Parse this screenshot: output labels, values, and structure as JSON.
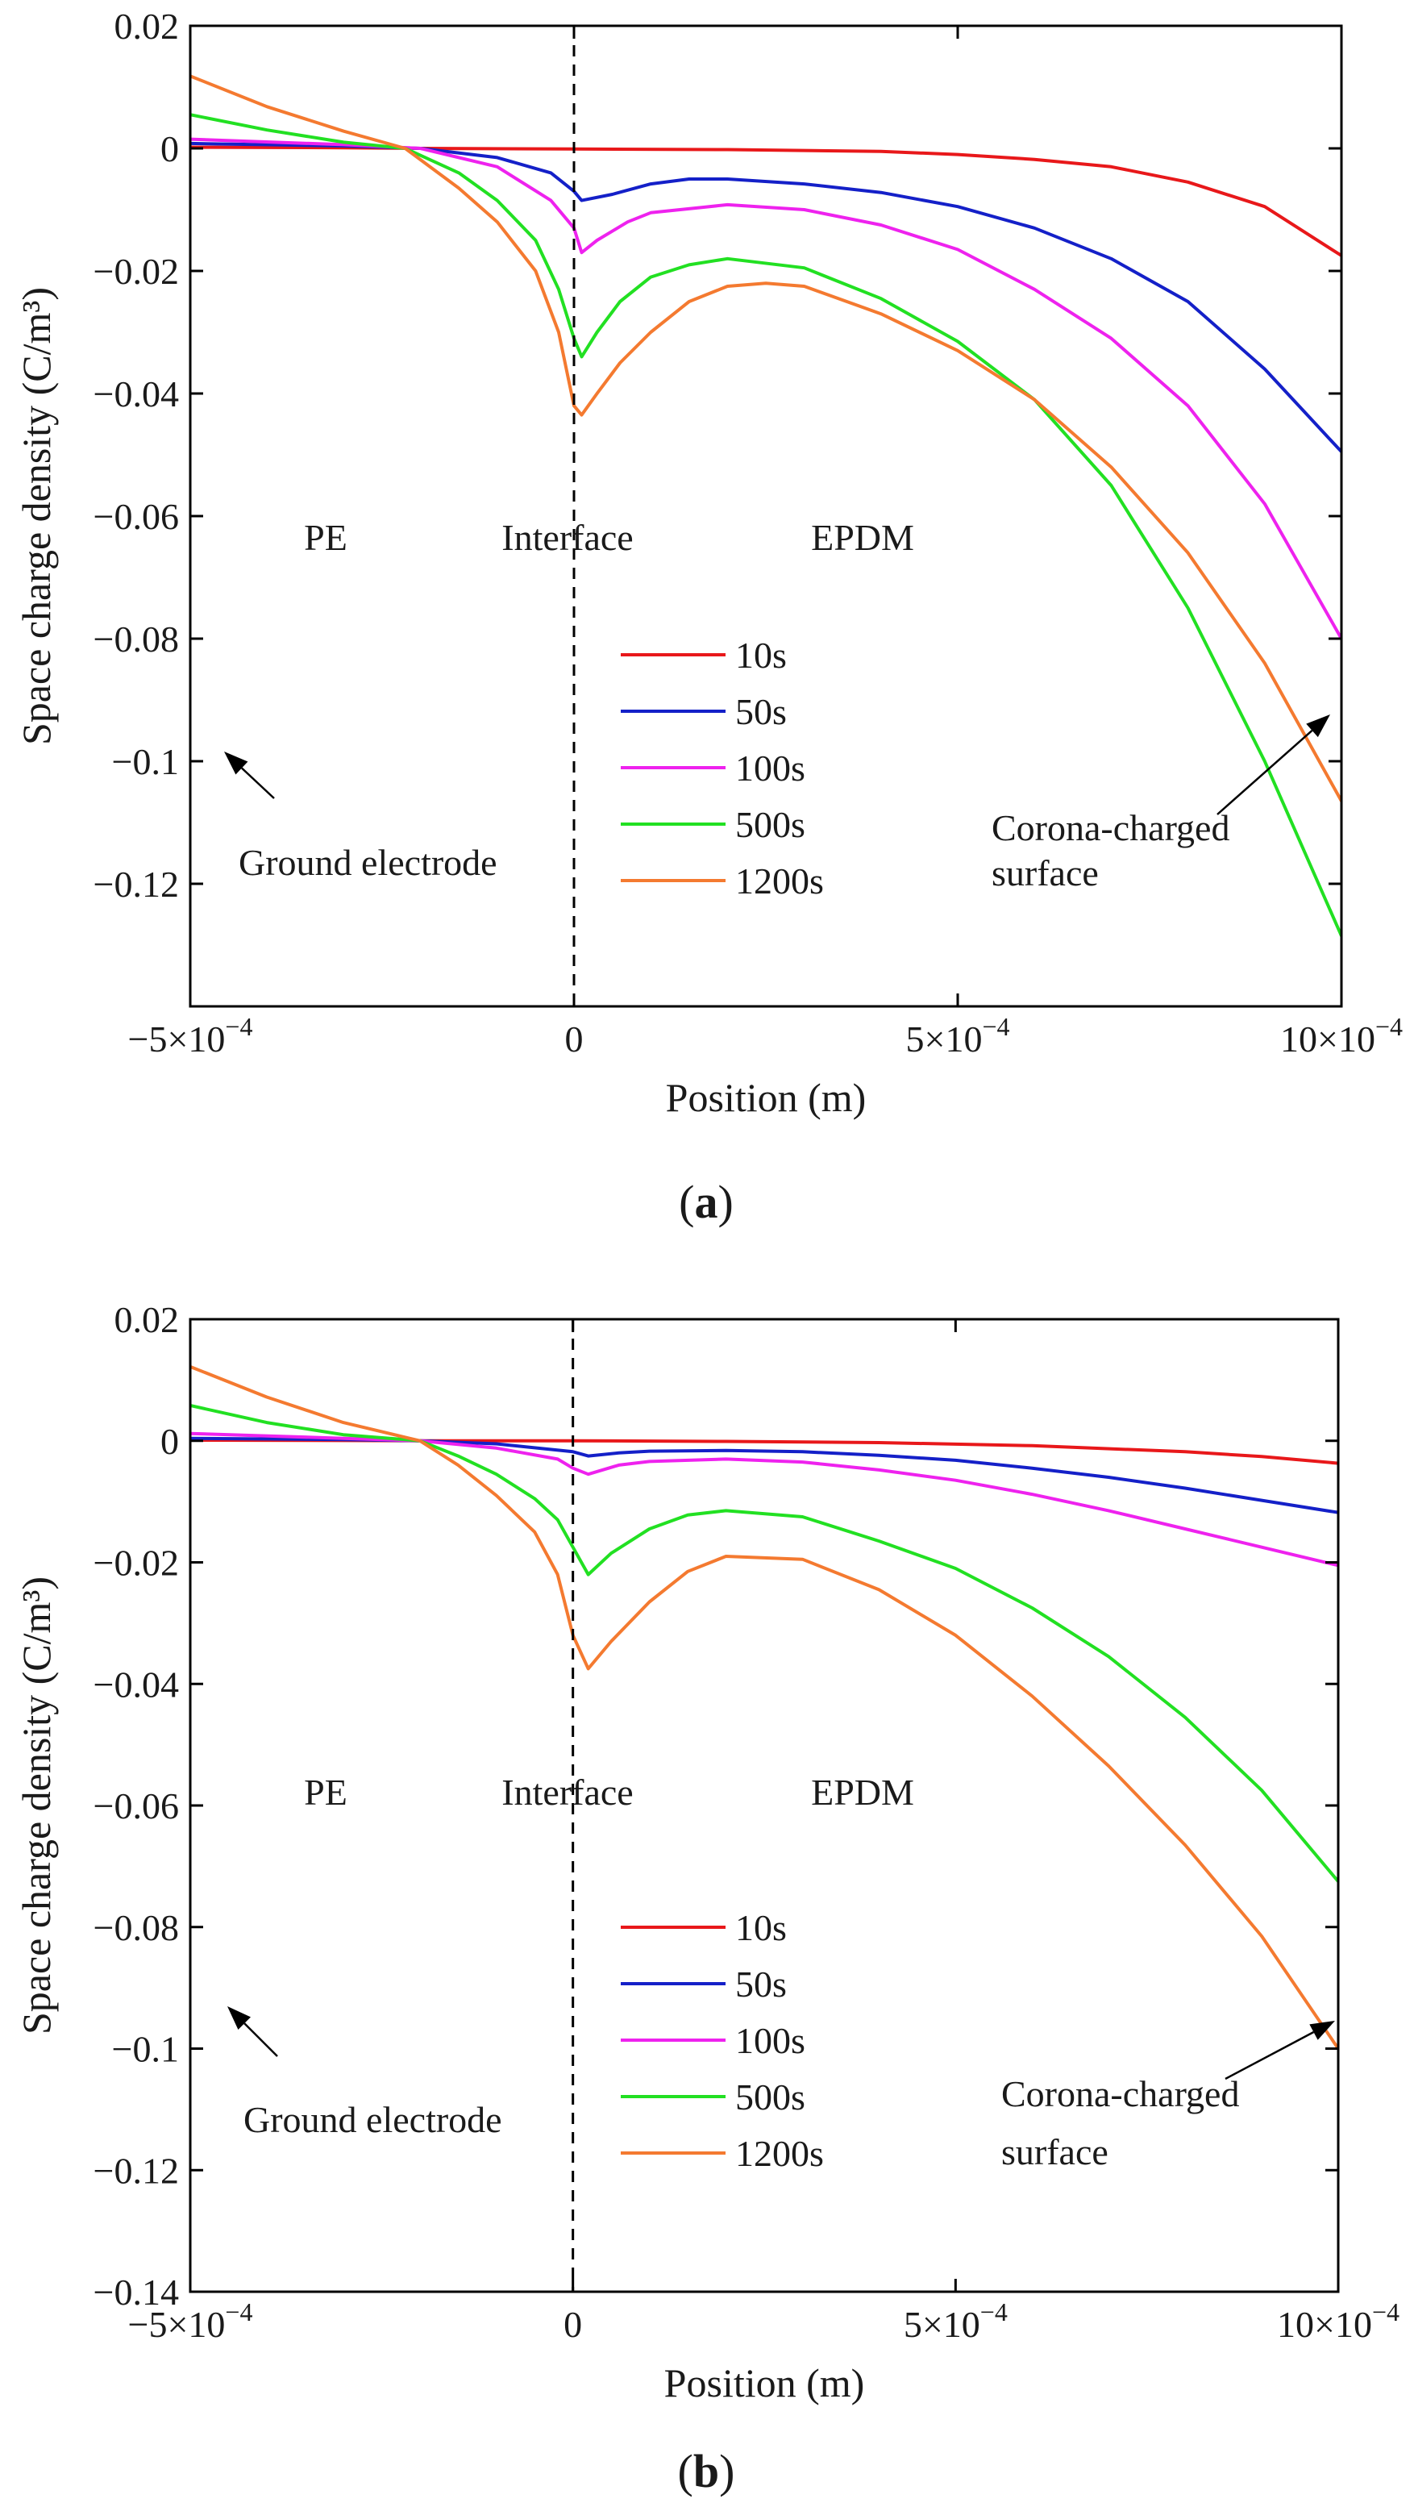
{
  "panels": [
    {
      "caption": "(a)",
      "caption_letter": "a",
      "annotations": {
        "pe": "PE",
        "interface": "Interface",
        "epdm": "EPDM",
        "ground": "Ground electrode",
        "corona_line1": "Corona-charged",
        "corona_line2": "surface"
      }
    },
    {
      "caption": "(b)",
      "caption_letter": "b",
      "annotations": {
        "pe": "PE",
        "interface": "Interface",
        "epdm": "EPDM",
        "ground": "Ground electrode",
        "corona_line1": "Corona-charged",
        "corona_line2": "surface"
      }
    }
  ],
  "colors": {
    "10s": "#e8181a",
    "50s": "#1420c8",
    "100s": "#ee22ee",
    "500s": "#22e022",
    "1200s": "#f47a30"
  },
  "chart_data": [
    {
      "type": "line",
      "xlabel": "Position (m)",
      "ylabel": "Space charge density (C/m³)",
      "xlim": [
        -0.0005,
        0.001
      ],
      "ylim": [
        -0.14,
        0.02
      ],
      "x_ticks": [
        {
          "value": -0.0005,
          "mant": "−5×10",
          "exp": "−4"
        },
        {
          "value": 0,
          "mant": "0",
          "exp": ""
        },
        {
          "value": 0.0005,
          "mant": "5×10",
          "exp": "−4"
        },
        {
          "value": 0.001,
          "mant": "10×10",
          "exp": "−4"
        }
      ],
      "y_ticks": [
        0.02,
        0,
        -0.02,
        -0.04,
        -0.06,
        -0.08,
        -0.1,
        -0.12
      ],
      "y_tick_labels": [
        "0.02",
        "0",
        "−0.02",
        "−0.04",
        "−0.06",
        "−0.08",
        "−0.1",
        "−0.12"
      ],
      "interface_x": 0,
      "legend": [
        "10s",
        "50s",
        "100s",
        "500s",
        "1200s"
      ],
      "series": [
        {
          "name": "10s",
          "x": [
            -0.0005,
            -0.0003,
            -0.0002,
            0,
            0.0002,
            0.0004,
            0.0005,
            0.0006,
            0.0007,
            0.0008,
            0.0009,
            0.001
          ],
          "y": [
            0.0002,
            0.0001,
            0,
            -0.0001,
            -0.0002,
            -0.0005,
            -0.001,
            -0.0018,
            -0.003,
            -0.0055,
            -0.0095,
            -0.0175
          ]
        },
        {
          "name": "50s",
          "x": [
            -0.0005,
            -0.0003,
            -0.0002,
            -0.0001,
            -3e-05,
            0,
            1e-05,
            5e-05,
            0.0001,
            0.00015,
            0.0002,
            0.0003,
            0.0004,
            0.0005,
            0.0006,
            0.0007,
            0.0008,
            0.0009,
            0.001
          ],
          "y": [
            0.0008,
            0.0004,
            0,
            -0.0015,
            -0.004,
            -0.007,
            -0.0085,
            -0.0075,
            -0.0058,
            -0.005,
            -0.005,
            -0.0058,
            -0.0072,
            -0.0095,
            -0.013,
            -0.018,
            -0.025,
            -0.036,
            -0.0495
          ]
        },
        {
          "name": "100s",
          "x": [
            -0.0005,
            -0.0003,
            -0.0002,
            -0.0001,
            -3e-05,
            0,
            1e-05,
            3e-05,
            7e-05,
            0.0001,
            0.0002,
            0.0003,
            0.0004,
            0.0005,
            0.0006,
            0.0007,
            0.0008,
            0.0009,
            0.001
          ],
          "y": [
            0.0015,
            0.0006,
            0,
            -0.003,
            -0.0085,
            -0.013,
            -0.017,
            -0.015,
            -0.012,
            -0.0105,
            -0.0092,
            -0.01,
            -0.0125,
            -0.0165,
            -0.023,
            -0.031,
            -0.042,
            -0.058,
            -0.08
          ]
        },
        {
          "name": "500s",
          "x": [
            -0.0005,
            -0.0004,
            -0.0003,
            -0.00022,
            -0.00015,
            -0.0001,
            -5e-05,
            -2e-05,
            0,
            1e-05,
            3e-05,
            6e-05,
            0.0001,
            0.00015,
            0.0002,
            0.0003,
            0.0004,
            0.0005,
            0.0006,
            0.0007,
            0.0008,
            0.0009,
            0.001
          ],
          "y": [
            0.0055,
            0.003,
            0.001,
            0,
            -0.004,
            -0.0085,
            -0.015,
            -0.023,
            -0.031,
            -0.034,
            -0.03,
            -0.025,
            -0.021,
            -0.019,
            -0.018,
            -0.0195,
            -0.0245,
            -0.0315,
            -0.041,
            -0.055,
            -0.075,
            -0.1,
            -0.1285
          ]
        },
        {
          "name": "1200s",
          "x": [
            -0.0005,
            -0.0004,
            -0.0003,
            -0.00022,
            -0.00015,
            -0.0001,
            -5e-05,
            -2e-05,
            0,
            1e-05,
            3e-05,
            6e-05,
            0.0001,
            0.00015,
            0.0002,
            0.00025,
            0.0003,
            0.0004,
            0.0005,
            0.0006,
            0.0007,
            0.0008,
            0.0009,
            0.001
          ],
          "y": [
            0.0118,
            0.0068,
            0.0028,
            0,
            -0.0065,
            -0.012,
            -0.02,
            -0.03,
            -0.042,
            -0.0435,
            -0.04,
            -0.035,
            -0.03,
            -0.025,
            -0.0225,
            -0.022,
            -0.0225,
            -0.027,
            -0.033,
            -0.041,
            -0.052,
            -0.066,
            -0.084,
            -0.1065
          ]
        }
      ]
    },
    {
      "type": "line",
      "xlabel": "Position (m)",
      "ylabel": "Space charge density (C/m³)",
      "xlim": [
        -0.0005,
        0.001
      ],
      "ylim": [
        -0.14,
        0.02
      ],
      "x_ticks": [
        {
          "value": -0.0005,
          "mant": "−5×10",
          "exp": "−4"
        },
        {
          "value": 0,
          "mant": "0",
          "exp": ""
        },
        {
          "value": 0.0005,
          "mant": "5×10",
          "exp": "−4"
        },
        {
          "value": 0.001,
          "mant": "10×10",
          "exp": "−4"
        }
      ],
      "y_ticks": [
        0.02,
        0,
        -0.02,
        -0.04,
        -0.06,
        -0.08,
        -0.1,
        -0.12,
        -0.14
      ],
      "y_tick_labels": [
        "0.02",
        "0",
        "−0.02",
        "−0.04",
        "−0.06",
        "−0.08",
        "−0.1",
        "−0.12",
        "−0.14"
      ],
      "interface_x": 0,
      "legend": [
        "10s",
        "50s",
        "100s",
        "500s",
        "1200s"
      ],
      "series": [
        {
          "name": "10s",
          "x": [
            -0.0005,
            -0.0003,
            -0.0002,
            0,
            0.0002,
            0.0004,
            0.0006,
            0.0008,
            0.0009,
            0.001
          ],
          "y": [
            0.0001,
            5e-05,
            0,
            0,
            -0.0001,
            -0.0003,
            -0.0008,
            -0.0018,
            -0.0026,
            -0.0037
          ]
        },
        {
          "name": "50s",
          "x": [
            -0.0005,
            -0.0003,
            -0.0002,
            -0.0001,
            0,
            2e-05,
            6e-05,
            0.0001,
            0.0002,
            0.0003,
            0.0004,
            0.0005,
            0.0006,
            0.0007,
            0.0008,
            0.0009,
            0.001
          ],
          "y": [
            0.0004,
            0.0002,
            0,
            -0.0005,
            -0.0018,
            -0.0025,
            -0.002,
            -0.0017,
            -0.0016,
            -0.0018,
            -0.0024,
            -0.0032,
            -0.0045,
            -0.006,
            -0.0078,
            -0.0098,
            -0.0118
          ]
        },
        {
          "name": "100s",
          "x": [
            -0.0005,
            -0.0003,
            -0.0002,
            -0.0001,
            -2e-05,
            0,
            2e-05,
            6e-05,
            0.0001,
            0.0002,
            0.0003,
            0.0004,
            0.0005,
            0.0006,
            0.0007,
            0.0008,
            0.0009,
            0.001
          ],
          "y": [
            0.0012,
            0.0004,
            0,
            -0.0012,
            -0.003,
            -0.0045,
            -0.0055,
            -0.004,
            -0.0034,
            -0.003,
            -0.0035,
            -0.0048,
            -0.0065,
            -0.0088,
            -0.0115,
            -0.0145,
            -0.0175,
            -0.0205
          ]
        },
        {
          "name": "500s",
          "x": [
            -0.0005,
            -0.0004,
            -0.0003,
            -0.0002,
            -0.00015,
            -0.0001,
            -5e-05,
            -2e-05,
            0,
            2e-05,
            5e-05,
            0.0001,
            0.00015,
            0.0002,
            0.0003,
            0.0004,
            0.0005,
            0.0006,
            0.0007,
            0.0008,
            0.0009,
            0.001
          ],
          "y": [
            0.0058,
            0.003,
            0.001,
            0,
            -0.0025,
            -0.0055,
            -0.0095,
            -0.013,
            -0.0175,
            -0.022,
            -0.0185,
            -0.0145,
            -0.0122,
            -0.0115,
            -0.0125,
            -0.0165,
            -0.021,
            -0.0275,
            -0.0355,
            -0.0455,
            -0.0575,
            -0.0725
          ]
        },
        {
          "name": "1200s",
          "x": [
            -0.0005,
            -0.0004,
            -0.0003,
            -0.0002,
            -0.00015,
            -0.0001,
            -5e-05,
            -2e-05,
            0,
            2e-05,
            5e-05,
            0.0001,
            0.00015,
            0.0002,
            0.0003,
            0.0004,
            0.0005,
            0.0006,
            0.0007,
            0.0008,
            0.0009,
            0.001
          ],
          "y": [
            0.0122,
            0.0072,
            0.003,
            0,
            -0.004,
            -0.009,
            -0.015,
            -0.022,
            -0.032,
            -0.0375,
            -0.033,
            -0.0265,
            -0.0215,
            -0.019,
            -0.0195,
            -0.0245,
            -0.032,
            -0.042,
            -0.0535,
            -0.0665,
            -0.0815,
            -0.1
          ]
        }
      ]
    }
  ]
}
